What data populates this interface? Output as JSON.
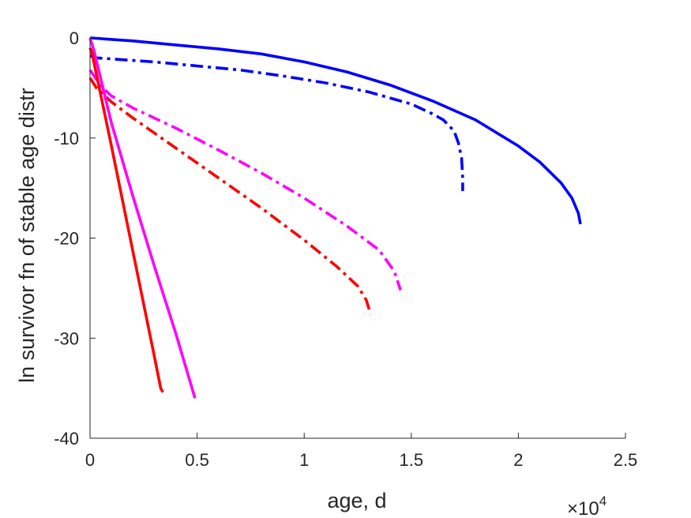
{
  "chart_data": {
    "type": "line",
    "xlabel": "age, d",
    "ylabel": "ln survivor fn of stable age distr",
    "x_multiplier": {
      "base": "×10",
      "exponent": "4"
    },
    "xlim": [
      0,
      2.5
    ],
    "ylim": [
      -40,
      0
    ],
    "x_ticks": [
      0,
      0.5,
      1,
      1.5,
      2,
      2.5
    ],
    "x_tick_labels": [
      "0",
      "0.5",
      "1",
      "1.5",
      "2",
      "2.5"
    ],
    "y_ticks": [
      0,
      -10,
      -20,
      -30,
      -40
    ],
    "y_tick_labels": [
      "0",
      "-10",
      "-20",
      "-30",
      "-40"
    ],
    "grid": false,
    "series": [
      {
        "color": "#0000ff",
        "style": "solid",
        "x": [
          0,
          0.2,
          0.4,
          0.6,
          0.8,
          1.0,
          1.2,
          1.4,
          1.6,
          1.8,
          2.0,
          2.1,
          2.2,
          2.25,
          2.28,
          2.29
        ],
        "y": [
          0,
          -0.3,
          -0.7,
          -1.1,
          -1.6,
          -2.4,
          -3.4,
          -4.7,
          -6.3,
          -8.2,
          -10.8,
          -12.4,
          -14.5,
          -16.0,
          -17.5,
          -18.6
        ]
      },
      {
        "color": "#0000ff",
        "style": "dashdot",
        "x": [
          0,
          0.03,
          0.1,
          0.3,
          0.5,
          0.7,
          0.9,
          1.1,
          1.3,
          1.5,
          1.6,
          1.65,
          1.7,
          1.72,
          1.735,
          1.74,
          1.74
        ],
        "y": [
          -1.8,
          -2.0,
          -2.1,
          -2.4,
          -2.8,
          -3.2,
          -3.8,
          -4.5,
          -5.4,
          -6.6,
          -7.6,
          -8.2,
          -9.3,
          -10.5,
          -12.0,
          -14.0,
          -15.3
        ]
      },
      {
        "color": "#ff00ff",
        "style": "dashdot",
        "x": [
          0,
          0.05,
          0.1,
          0.2,
          0.4,
          0.6,
          0.8,
          1.0,
          1.2,
          1.35,
          1.42,
          1.45
        ],
        "y": [
          -3.2,
          -4.8,
          -5.8,
          -7.0,
          -9.0,
          -11.2,
          -13.5,
          -16.0,
          -18.8,
          -21.2,
          -23.3,
          -25.2
        ]
      },
      {
        "color": "#ff0000",
        "style": "dashdot",
        "x": [
          0,
          0.03,
          0.1,
          0.2,
          0.4,
          0.6,
          0.8,
          1.0,
          1.15,
          1.25,
          1.29,
          1.31
        ],
        "y": [
          -4.0,
          -5.0,
          -6.4,
          -8.0,
          -11.0,
          -14.0,
          -17.0,
          -20.2,
          -22.8,
          -24.8,
          -26.2,
          -27.6
        ]
      },
      {
        "color": "#ff00ff",
        "style": "solid",
        "x": [
          0,
          0.02,
          0.1,
          0.2,
          0.3,
          0.4,
          0.49
        ],
        "y": [
          0,
          -1.4,
          -8.5,
          -15.8,
          -22.8,
          -29.5,
          -36.0
        ]
      },
      {
        "color": "#ff0000",
        "style": "solid",
        "x": [
          0,
          0.01,
          0.1,
          0.2,
          0.3,
          0.33,
          0.34
        ],
        "y": [
          -1.0,
          -1.6,
          -10.8,
          -21.3,
          -31.8,
          -35.0,
          -35.4
        ]
      }
    ]
  }
}
